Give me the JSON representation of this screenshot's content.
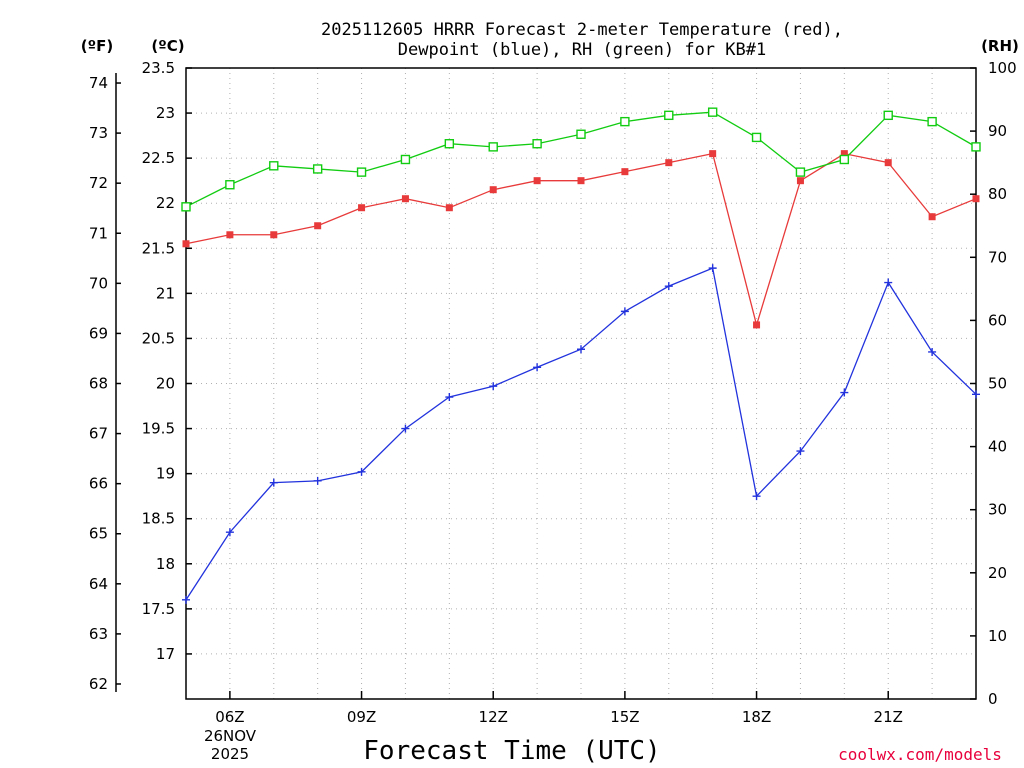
{
  "chart_data": {
    "type": "line",
    "title": "2025112605 HRRR Forecast 2-meter Temperature (red),",
    "subtitle": "Dewpoint (blue), RH (green) for KB#1",
    "xlabel": "Forecast Time (UTC)",
    "x_start_label": [
      "26NOV",
      "2025"
    ],
    "credit": "coolwx.com/models",
    "hours": [
      5,
      6,
      7,
      8,
      9,
      10,
      11,
      12,
      13,
      14,
      15,
      16,
      17,
      18,
      19,
      20,
      21,
      22,
      23
    ],
    "x_ticks": [
      {
        "hour": 6,
        "label": "06Z"
      },
      {
        "hour": 9,
        "label": "09Z"
      },
      {
        "hour": 12,
        "label": "12Z"
      },
      {
        "hour": 15,
        "label": "15Z"
      },
      {
        "hour": 18,
        "label": "18Z"
      },
      {
        "hour": 21,
        "label": "21Z"
      }
    ],
    "xlim": [
      5,
      23
    ],
    "units": {
      "fahrenheit": "(ºF)",
      "celsius": "(ºC)",
      "rh": "(RH)"
    },
    "ylim_celsius": [
      16.5,
      23.5
    ],
    "ylim_fahrenheit": [
      61.7,
      74.3
    ],
    "ylim_rh": [
      0,
      100
    ],
    "celsius_ticks": [
      "17",
      "17.5",
      "18",
      "18.5",
      "19",
      "19.5",
      "20",
      "20.5",
      "21",
      "21.5",
      "22",
      "22.5",
      "23",
      "23.5"
    ],
    "fahrenheit_ticks": [
      "62",
      "63",
      "64",
      "65",
      "66",
      "67",
      "68",
      "69",
      "70",
      "71",
      "72",
      "73",
      "74"
    ],
    "rh_ticks": [
      "0",
      "10",
      "20",
      "30",
      "40",
      "50",
      "60",
      "70",
      "80",
      "90",
      "100"
    ],
    "grid": true,
    "series": [
      {
        "name": "Temperature",
        "axis": "celsius",
        "color": "#e83a3a",
        "marker": "filled-square",
        "values": [
          21.55,
          21.65,
          21.65,
          21.75,
          21.95,
          22.05,
          21.95,
          22.15,
          22.25,
          22.25,
          22.35,
          22.45,
          22.55,
          20.65,
          22.25,
          22.55,
          22.45,
          21.85,
          22.05
        ]
      },
      {
        "name": "Dewpoint",
        "axis": "celsius",
        "color": "#2233dd",
        "marker": "plus",
        "values": [
          17.6,
          18.35,
          18.9,
          18.92,
          19.02,
          19.5,
          19.85,
          19.97,
          20.18,
          20.38,
          20.8,
          21.08,
          21.28,
          18.75,
          19.25,
          19.9,
          21.12,
          20.35,
          19.88
        ]
      },
      {
        "name": "RH",
        "axis": "rh",
        "color": "#11cc11",
        "marker": "open-square",
        "values": [
          78,
          81.5,
          84.5,
          84,
          83.5,
          85.5,
          88,
          87.5,
          88,
          89.5,
          91.5,
          92.5,
          93,
          89,
          83.5,
          85.5,
          92.5,
          91.5,
          87.5
        ]
      }
    ]
  }
}
